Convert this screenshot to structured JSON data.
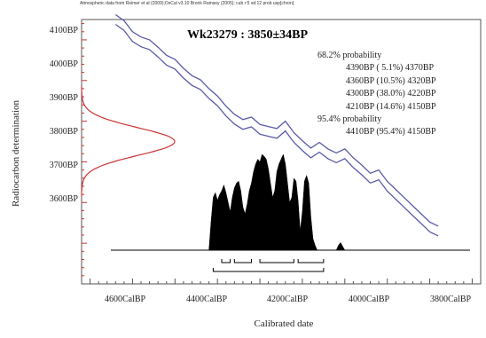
{
  "header_note": "Atmospheric data from Reimer et al (2009);OxCal v3.10 Bronk Ramsey (2005); cub r:5 sd:12 prob usp[chron]",
  "chart_data": {
    "type": "area",
    "title": "Wk23279 : 3850±34BP",
    "xlabel": "Calibrated date",
    "ylabel": "Radiocarbon determination",
    "x_unit_label": "CalBP",
    "y_unit_label": "BP",
    "xlim": [
      4720,
      3780
    ],
    "ylim": [
      3500,
      4150
    ],
    "x_ticks": [
      "4600CalBP",
      "4400CalBP",
      "4200CalBP",
      "4000CalBP",
      "3800CalBP"
    ],
    "x_tick_values": [
      4600,
      4400,
      4200,
      4000,
      3800
    ],
    "y_ticks": [
      "4100BP",
      "4000BP",
      "3900BP",
      "3800BP",
      "3700BP",
      "3600BP"
    ],
    "y_tick_values": [
      4100,
      4000,
      3900,
      3800,
      3700,
      3600
    ],
    "radiocarbon_date": {
      "mean": 3850,
      "sd": 34
    },
    "calibration_curve": {
      "x": [
        4640,
        4620,
        4600,
        4580,
        4560,
        4540,
        4520,
        4500,
        4480,
        4460,
        4440,
        4420,
        4400,
        4380,
        4360,
        4340,
        4320,
        4300,
        4280,
        4260,
        4240,
        4220,
        4200,
        4180,
        4160,
        4140,
        4120,
        4100,
        4080,
        4060,
        4040,
        4020,
        4000,
        3980,
        3960,
        3940,
        3920,
        3900,
        3880
      ],
      "y": [
        4150,
        4135,
        4108,
        4095,
        4088,
        4070,
        4050,
        4040,
        4018,
        4000,
        3990,
        3968,
        3950,
        3925,
        3905,
        3892,
        3898,
        3880,
        3875,
        3870,
        3888,
        3860,
        3840,
        3822,
        3836,
        3820,
        3810,
        3820,
        3798,
        3780,
        3760,
        3768,
        3740,
        3720,
        3700,
        3680,
        3660,
        3640,
        3630
      ],
      "band": 12
    },
    "probability_distribution": {
      "x": [
        4420,
        4415,
        4410,
        4405,
        4400,
        4395,
        4390,
        4385,
        4380,
        4375,
        4370,
        4365,
        4360,
        4355,
        4350,
        4345,
        4340,
        4335,
        4330,
        4325,
        4320,
        4315,
        4310,
        4305,
        4300,
        4295,
        4290,
        4285,
        4280,
        4275,
        4270,
        4265,
        4260,
        4255,
        4250,
        4245,
        4240,
        4235,
        4230,
        4225,
        4220,
        4215,
        4210,
        4205,
        4200,
        4195,
        4190,
        4185,
        4180,
        4175,
        4170,
        4165,
        4160,
        4155,
        4150,
        4145,
        4140,
        4130,
        4120,
        4115,
        4110,
        4105,
        4100,
        4090
      ],
      "y": [
        0,
        0.3,
        0.55,
        0.6,
        0.52,
        0.58,
        0.62,
        0.68,
        0.6,
        0.5,
        0.4,
        0.55,
        0.65,
        0.7,
        0.72,
        0.62,
        0.45,
        0.38,
        0.48,
        0.62,
        0.7,
        0.82,
        0.9,
        0.95,
        0.92,
        1.0,
        0.98,
        0.95,
        0.85,
        0.7,
        0.55,
        0.62,
        0.82,
        0.9,
        0.95,
        1.0,
        0.9,
        0.7,
        0.5,
        0.55,
        0.75,
        0.72,
        0.52,
        0.2,
        0.4,
        0.72,
        0.78,
        0.7,
        0.35,
        0.12,
        0.05,
        0,
        0,
        0,
        0,
        0,
        0,
        0,
        0,
        0.05,
        0.08,
        0.04,
        0,
        0
      ]
    },
    "ranges_68": [
      [
        4390,
        4370
      ],
      [
        4360,
        4320
      ],
      [
        4300,
        4220
      ],
      [
        4210,
        4150
      ]
    ],
    "ranges_95": [
      [
        4410,
        4150
      ]
    ],
    "ranges_text": [
      "68.2% probability",
      "4390BP ( 5.1%) 4370BP",
      "4360BP (10.5%) 4320BP",
      "4300BP (38.0%) 4220BP",
      "4210BP (14.6%) 4150BP",
      "95.4% probability",
      "4410BP (95.4%) 4150BP"
    ],
    "colors": {
      "curve": "#5a5aa8",
      "rc_distribution": "#cc3333",
      "distribution": "#000000",
      "axis": "#555555"
    }
  }
}
